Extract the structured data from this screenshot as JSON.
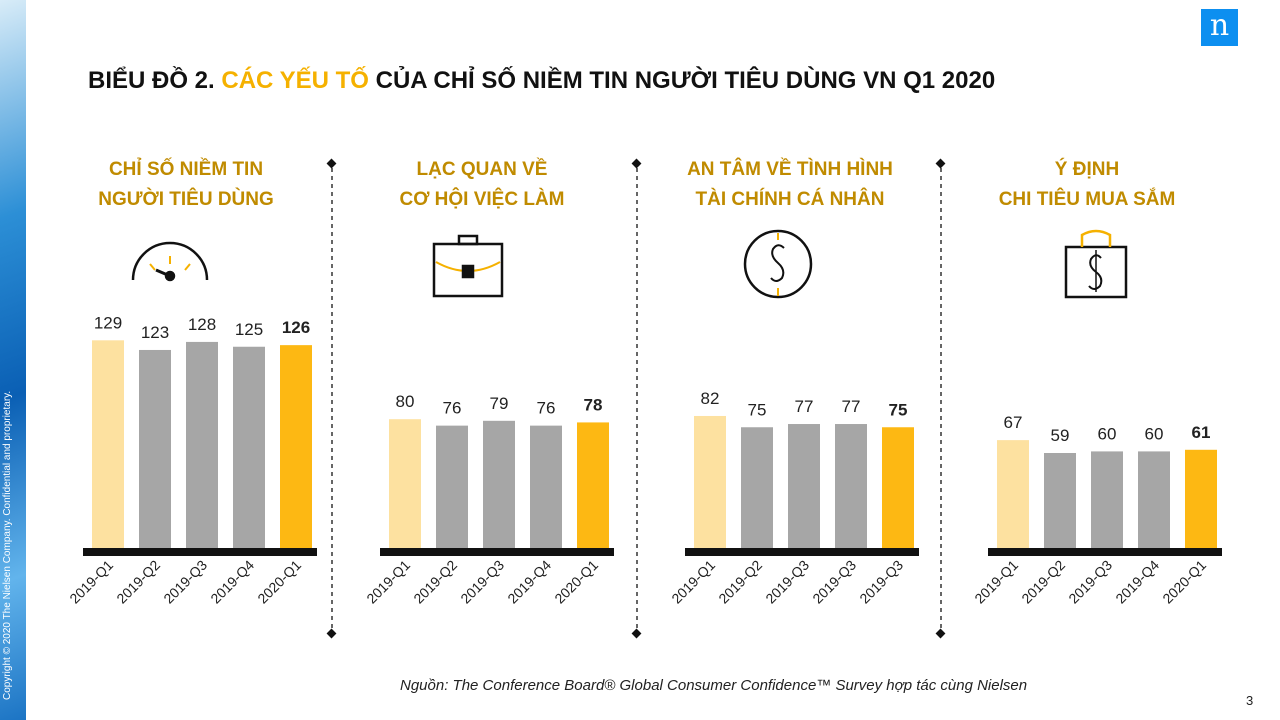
{
  "sidebar": {
    "copyright": "Copyright © 2020 The Nielsen Company. Confidential and proprietary."
  },
  "logo": {
    "letter": "n"
  },
  "title": {
    "part1": "BIỂU ĐỒ 2. ",
    "part2": "CÁC YẾU TỐ",
    "part3": " CỦA CHỈ SỐ NIỀM TIN NGƯỜI TIÊU DÙNG VN Q1 2020"
  },
  "panels": [
    {
      "title1": "CHỈ SỐ NIỀM TIN",
      "title2": "NGƯỜI TIÊU DÙNG",
      "icon": "gauge-icon"
    },
    {
      "title1": "LẠC QUAN VỀ",
      "title2": "CƠ HỘI VIỆC LÀM",
      "icon": "briefcase-icon"
    },
    {
      "title1": "AN TÂM VỀ TÌNH HÌNH",
      "title2": "TÀI CHÍNH CÁ NHÂN",
      "icon": "dollar-circle-icon"
    },
    {
      "title1": "Ý ĐỊNH",
      "title2": "CHI TIÊU MUA SẮM",
      "icon": "shopping-bag-dollar-icon"
    }
  ],
  "colors": {
    "first": "#fde1a0",
    "middle": "#a6a6a6",
    "last": "#fdb813",
    "baseline": "#111111",
    "title_accent": "#f5b100",
    "panel_title": "#c08b00"
  },
  "chart_data": [
    {
      "type": "bar",
      "title": "CHỈ SỐ NIỀM TIN NGƯỜI TIÊU DÙNG",
      "categories": [
        "2019-Q1",
        "2019-Q2",
        "2019-Q3",
        "2019-Q4",
        "2020-Q1"
      ],
      "values": [
        129,
        123,
        128,
        125,
        126
      ],
      "ylim": [
        0,
        140
      ]
    },
    {
      "type": "bar",
      "title": "LẠC QUAN VỀ CƠ HỘI VIỆC LÀM",
      "categories": [
        "2019-Q1",
        "2019-Q2",
        "2019-Q3",
        "2019-Q4",
        "2020-Q1"
      ],
      "values": [
        80,
        76,
        79,
        76,
        78
      ],
      "ylim": [
        0,
        140
      ]
    },
    {
      "type": "bar",
      "title": "AN TÂM VỀ TÌNH HÌNH TÀI CHÍNH CÁ NHÂN",
      "categories": [
        "2019-Q1",
        "2019-Q2",
        "2019-Q3",
        "2019-Q3",
        "2019-Q3"
      ],
      "values": [
        82,
        75,
        77,
        77,
        75
      ],
      "ylim": [
        0,
        140
      ]
    },
    {
      "type": "bar",
      "title": "Ý ĐỊNH CHI TIÊU MUA SẮM",
      "categories": [
        "2019-Q1",
        "2019-Q2",
        "2019-Q3",
        "2019-Q4",
        "2020-Q1"
      ],
      "values": [
        67,
        59,
        60,
        60,
        61
      ],
      "ylim": [
        0,
        140
      ]
    }
  ],
  "source": "Nguồn: The Conference Board® Global Consumer Confidence™ Survey hợp tác cùng Nielsen",
  "page_number": "3"
}
